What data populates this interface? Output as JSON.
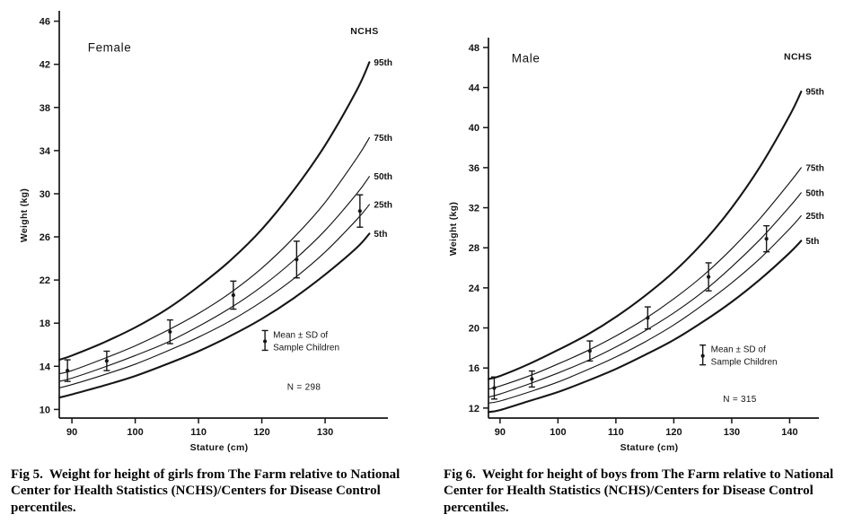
{
  "figures": [
    {
      "caption_label": "Fig 5.",
      "caption_text": "Weight for height of girls from The Farm relative to National Center for Health Statistics (NCHS)/Centers for Disease Control percentiles."
    },
    {
      "caption_label": "Fig 6.",
      "caption_text": "Weight for height of boys from The Farm relative to National Center for Health Statistics (NCHS)/Centers for Disease Control percentiles."
    }
  ],
  "chart_data": [
    {
      "type": "line",
      "group_label": "Female",
      "group_label_pos": [
        92.5,
        43.2
      ],
      "xlabel": "Stature (cm)",
      "ylabel": "Weight (kg)",
      "xlim": [
        88,
        138.5
      ],
      "ylim": [
        9.2,
        46.8
      ],
      "x_ticks": [
        90,
        100,
        110,
        120,
        130
      ],
      "y_ticks": [
        10,
        14,
        18,
        22,
        26,
        30,
        34,
        38,
        42,
        46
      ],
      "margins": {
        "l": 54,
        "r": 56,
        "t": 10,
        "b": 50
      },
      "nchs_label": "NCHS",
      "nchs_pos": [
        134,
        44.8
      ],
      "series": [
        {
          "name": "95th",
          "bold": true,
          "x": [
            88,
            90,
            95,
            100,
            105,
            110,
            115,
            120,
            125,
            130,
            135,
            137
          ],
          "y": [
            14.6,
            15.0,
            16.2,
            17.6,
            19.3,
            21.4,
            23.8,
            26.7,
            30.3,
            34.5,
            39.6,
            42.2
          ]
        },
        {
          "name": "75th",
          "bold": false,
          "x": [
            88,
            90,
            95,
            100,
            105,
            110,
            115,
            120,
            125,
            130,
            135,
            137
          ],
          "y": [
            13.3,
            13.6,
            14.7,
            15.9,
            17.3,
            18.9,
            20.8,
            23.1,
            25.9,
            29.2,
            33.3,
            35.2
          ]
        },
        {
          "name": "50th",
          "bold": false,
          "x": [
            88,
            90,
            95,
            100,
            105,
            110,
            115,
            120,
            125,
            130,
            135,
            137
          ],
          "y": [
            12.6,
            12.9,
            13.9,
            15.0,
            16.2,
            17.7,
            19.4,
            21.4,
            23.8,
            26.6,
            30.0,
            31.6
          ]
        },
        {
          "name": "25th",
          "bold": false,
          "x": [
            88,
            90,
            95,
            100,
            105,
            110,
            115,
            120,
            125,
            130,
            135,
            137
          ],
          "y": [
            12.0,
            12.3,
            13.2,
            14.2,
            15.4,
            16.7,
            18.2,
            20.0,
            22.1,
            24.6,
            27.6,
            29.0
          ]
        },
        {
          "name": "5th",
          "bold": true,
          "x": [
            88,
            90,
            95,
            100,
            105,
            110,
            115,
            120,
            125,
            130,
            135,
            137
          ],
          "y": [
            11.1,
            11.4,
            12.2,
            13.1,
            14.2,
            15.4,
            16.8,
            18.4,
            20.3,
            22.5,
            25.0,
            26.3
          ]
        }
      ],
      "sample_points": [
        {
          "x": 89.3,
          "mean": 13.6,
          "sd": 1.0
        },
        {
          "x": 95.5,
          "mean": 14.5,
          "sd": 0.9
        },
        {
          "x": 105.5,
          "mean": 17.2,
          "sd": 1.1
        },
        {
          "x": 115.5,
          "mean": 20.6,
          "sd": 1.3
        },
        {
          "x": 125.5,
          "mean": 23.9,
          "sd": 1.7
        },
        {
          "x": 135.5,
          "mean": 28.4,
          "sd": 1.5
        }
      ],
      "legend": {
        "line1": "Mean ± SD of",
        "line2": "Sample Children",
        "glyph_pos": [
          120.5,
          16.4
        ],
        "n_label": "N = 298",
        "n_pos": [
          124,
          11.8
        ]
      }
    },
    {
      "type": "line",
      "group_label": "Male",
      "group_label_pos": [
        92,
        46.5
      ],
      "xlabel": "Stature (cm)",
      "ylabel": "Weight (kg)",
      "xlim": [
        88,
        143.5
      ],
      "ylim": [
        11,
        48.8
      ],
      "x_ticks": [
        90,
        100,
        110,
        120,
        130,
        140
      ],
      "y_ticks": [
        12,
        16,
        20,
        24,
        28,
        32,
        36,
        40,
        44,
        48
      ],
      "margins": {
        "l": 50,
        "r": 58,
        "t": 40,
        "b": 50
      },
      "nchs_label": "NCHS",
      "nchs_pos": [
        139,
        46.8
      ],
      "series": [
        {
          "name": "95th",
          "bold": true,
          "x": [
            88,
            90,
            95,
            100,
            105,
            110,
            115,
            120,
            125,
            130,
            135,
            140,
            142
          ],
          "y": [
            14.9,
            15.2,
            16.4,
            17.8,
            19.3,
            21.1,
            23.2,
            25.6,
            28.5,
            32.0,
            36.2,
            41.2,
            43.6
          ]
        },
        {
          "name": "75th",
          "bold": false,
          "x": [
            88,
            90,
            95,
            100,
            105,
            110,
            115,
            120,
            125,
            130,
            135,
            140,
            142
          ],
          "y": [
            13.9,
            14.2,
            15.2,
            16.4,
            17.7,
            19.2,
            20.9,
            22.9,
            25.2,
            27.9,
            31.0,
            34.5,
            36.0
          ]
        },
        {
          "name": "50th",
          "bold": false,
          "x": [
            88,
            90,
            95,
            100,
            105,
            110,
            115,
            120,
            125,
            130,
            135,
            140,
            142
          ],
          "y": [
            13.1,
            13.4,
            14.4,
            15.5,
            16.7,
            18.1,
            19.7,
            21.5,
            23.6,
            26.1,
            28.9,
            32.1,
            33.5
          ]
        },
        {
          "name": "25th",
          "bold": false,
          "x": [
            88,
            90,
            95,
            100,
            105,
            110,
            115,
            120,
            125,
            130,
            135,
            140,
            142
          ],
          "y": [
            12.5,
            12.7,
            13.6,
            14.6,
            15.8,
            17.1,
            18.6,
            20.3,
            22.3,
            24.5,
            27.0,
            29.9,
            31.2
          ]
        },
        {
          "name": "5th",
          "bold": true,
          "x": [
            88,
            90,
            95,
            100,
            105,
            110,
            115,
            120,
            125,
            130,
            135,
            140,
            142
          ],
          "y": [
            11.6,
            11.8,
            12.7,
            13.6,
            14.7,
            15.9,
            17.3,
            18.8,
            20.6,
            22.6,
            24.9,
            27.5,
            28.7
          ]
        }
      ],
      "sample_points": [
        {
          "x": 89,
          "mean": 14.0,
          "sd": 1.1
        },
        {
          "x": 95.5,
          "mean": 14.9,
          "sd": 0.8
        },
        {
          "x": 105.5,
          "mean": 17.7,
          "sd": 1.0
        },
        {
          "x": 115.5,
          "mean": 21.0,
          "sd": 1.1
        },
        {
          "x": 126,
          "mean": 25.1,
          "sd": 1.4
        },
        {
          "x": 136,
          "mean": 28.9,
          "sd": 1.3
        }
      ],
      "legend": {
        "line1": "Mean ± SD of",
        "line2": "Sample Children",
        "glyph_pos": [
          125,
          17.3
        ],
        "n_label": "N = 315",
        "n_pos": [
          128.5,
          12.6
        ]
      }
    }
  ]
}
